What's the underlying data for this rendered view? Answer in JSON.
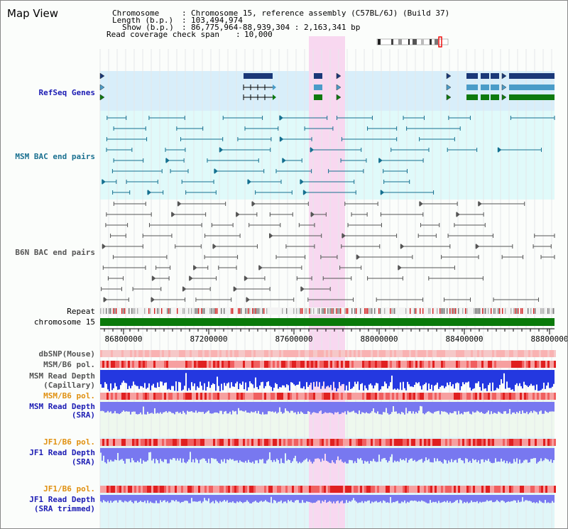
{
  "view": {
    "title": "Map View",
    "chromosome_label": "Chromosome",
    "chromosome_value": "Chromosome 15, reference assembly (C57BL/6J) (Build 37)",
    "length_label": "Length (b.p.)",
    "length_value": "103,494,974",
    "show_label": "Show (b.p.)",
    "show_value": "86,775,964-88,939,304 : 2,163,341 bp",
    "span_label": "Read coverage check span",
    "span_value": "10,000"
  },
  "tracks": {
    "refseq": "RefSeq Genes",
    "msm_bac": "MSM BAC end pairs",
    "b6n_bac": "B6N BAC end pairs",
    "repeat": "Repeat",
    "chromosome": "chromosome 15",
    "dbsnp": "dbSNP(Mouse)",
    "msm_b6_pol_1": "MSM/B6 pol.",
    "msm_depth_cap_1": "MSM Read Depth",
    "msm_depth_cap_2": "(Capillary)",
    "msm_b6_pol_2": "MSM/B6 pol.",
    "msm_depth_sra_1": "MSM Read Depth",
    "msm_depth_sra_2": "(SRA)",
    "jf1_b6_pol_1": "JF1/B6 pol.",
    "jf1_depth_sra_1": "JF1 Read Depth",
    "jf1_depth_sra_2": "(SRA)",
    "jf1_b6_pol_2": "JF1/B6 pol.",
    "jf1_depth_trim_1": "JF1 Read Depth",
    "jf1_depth_trim_2": "(SRA trimmed)"
  },
  "axis": {
    "ticks": [
      "86800000",
      "87200000",
      "87600000",
      "88000000",
      "88400000",
      "88800000"
    ]
  },
  "colors": {
    "refseq_bg": "#d8eefa",
    "msm_bg": "#e0fafa",
    "highlight": "#f8d8f0",
    "gene_dark": "#1a3878",
    "gene_mid": "#4a9cc8",
    "gene_green": "#0e7a0e",
    "chromosome_bar": "#0a7a0a",
    "msm_pair": "#157090",
    "b6n_pair": "#555555",
    "depth_blue": "#2438e0",
    "depth_light": "#7878f0",
    "pol_red": "#f04848"
  }
}
